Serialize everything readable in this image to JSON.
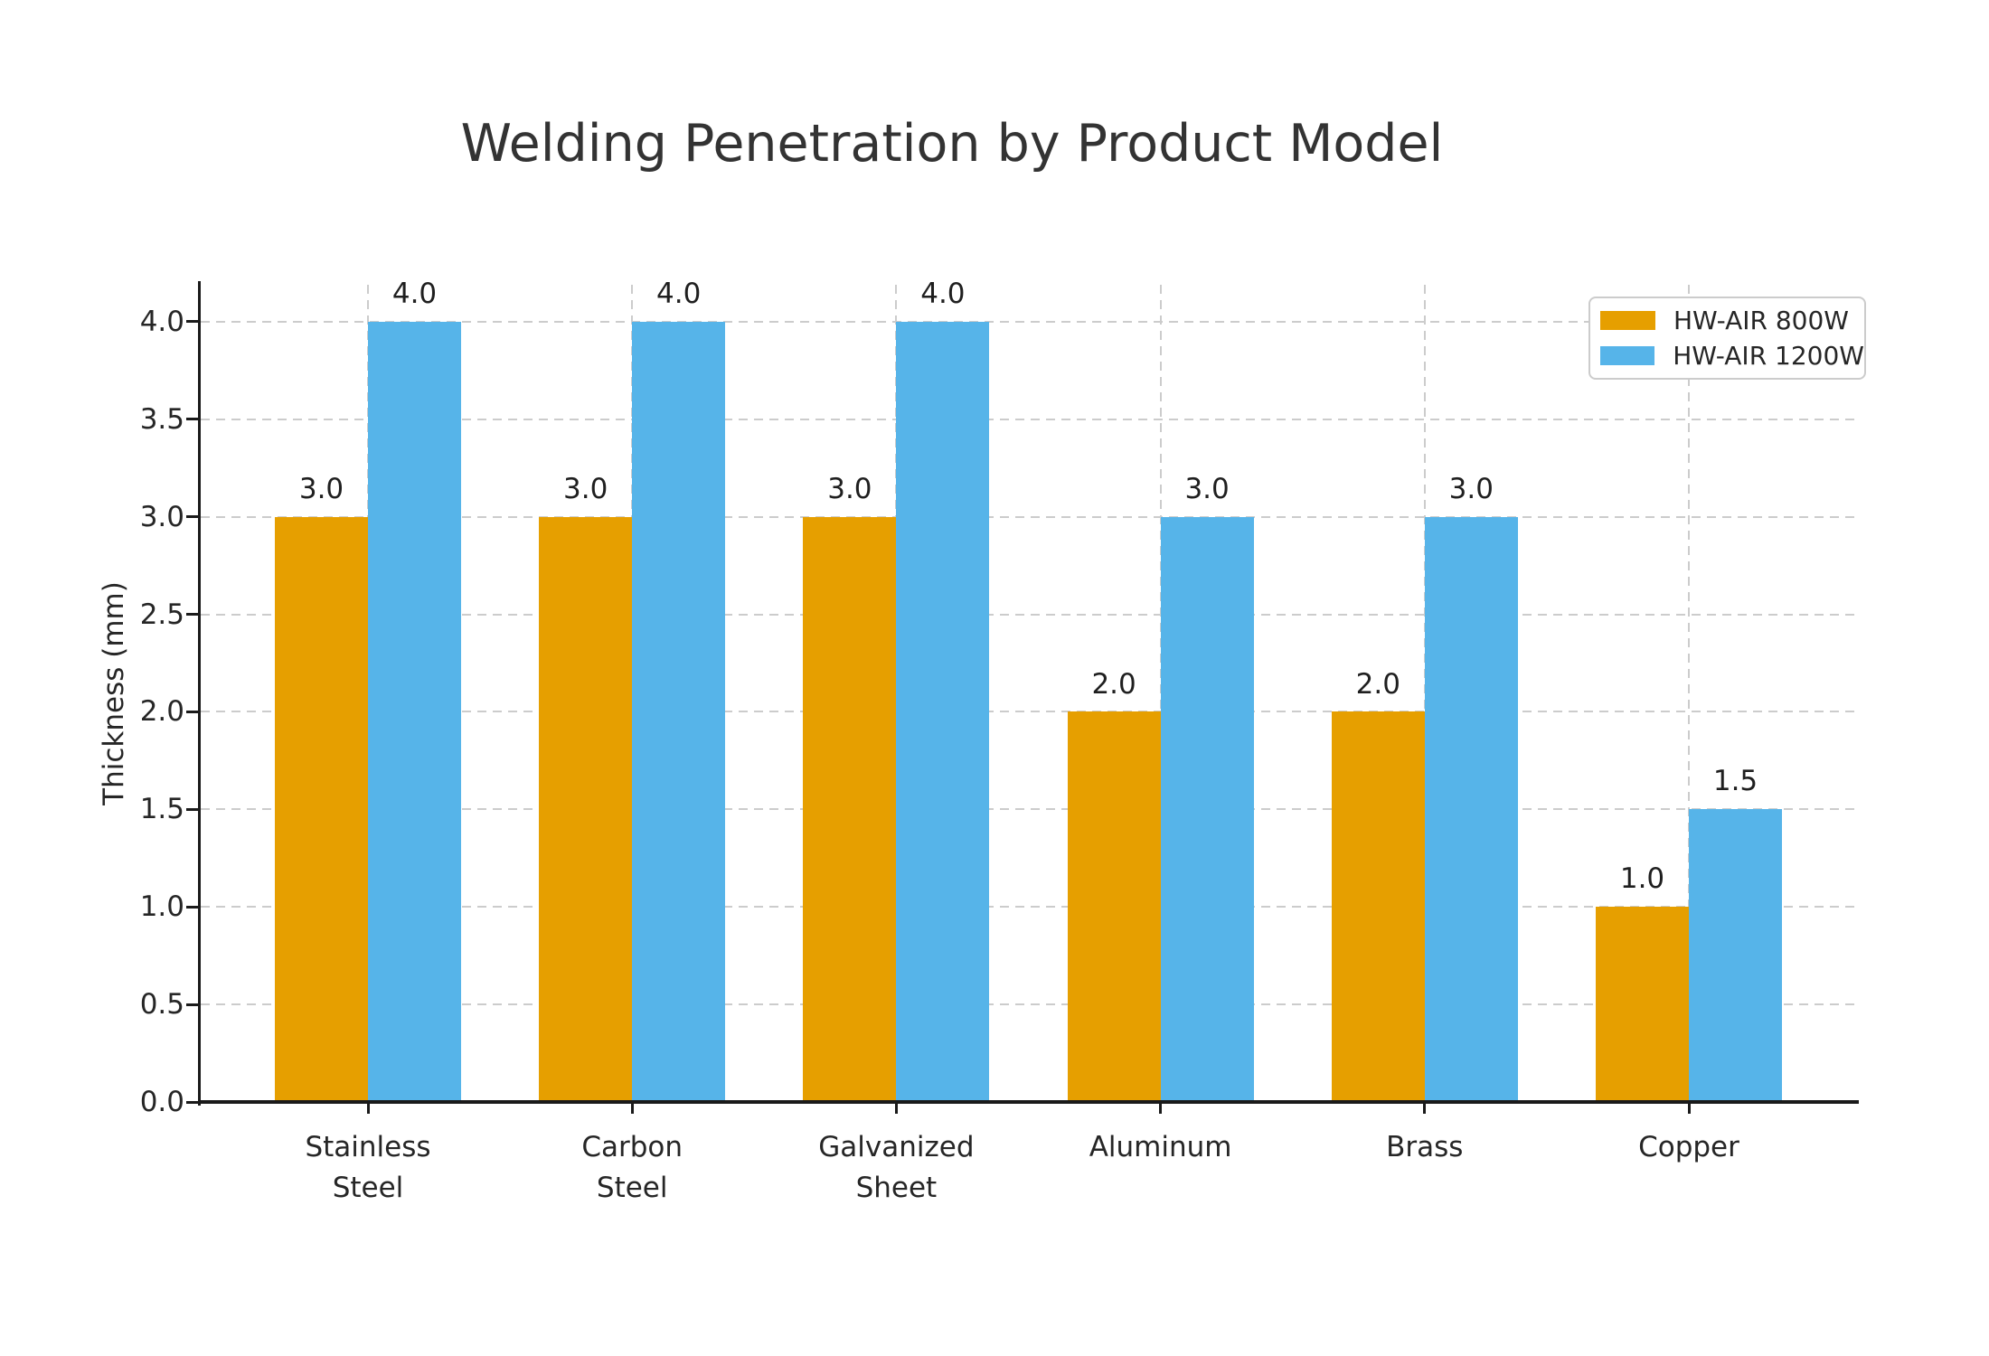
{
  "chart_data": {
    "type": "bar",
    "title": "Welding Penetration by Product Model",
    "xlabel": "",
    "ylabel": "Thickness (mm)",
    "categories": [
      "Stainless\nSteel",
      "Carbon\nSteel",
      "Galvanized\nSheet",
      "Aluminum",
      "Brass",
      "Copper"
    ],
    "series": [
      {
        "name": "HW-AIR 800W",
        "color": "#E69F00",
        "values": [
          3.0,
          3.0,
          3.0,
          2.0,
          2.0,
          1.0
        ],
        "value_labels": [
          "3.0",
          "3.0",
          "3.0",
          "2.0",
          "2.0",
          "1.0"
        ]
      },
      {
        "name": "HW-AIR 1200W",
        "color": "#56B4E9",
        "values": [
          4.0,
          4.0,
          4.0,
          3.0,
          3.0,
          1.5
        ],
        "value_labels": [
          "4.0",
          "4.0",
          "4.0",
          "3.0",
          "3.0",
          "1.5"
        ]
      }
    ],
    "yticks": [
      0.0,
      0.5,
      1.0,
      1.5,
      2.0,
      2.5,
      3.0,
      3.5,
      4.0
    ],
    "ytick_labels": [
      "0.0",
      "0.5",
      "1.0",
      "1.5",
      "2.0",
      "2.5",
      "3.0",
      "3.5",
      "4.0"
    ],
    "ylim": [
      0,
      4.19
    ],
    "grid": true,
    "grid_style": "dashed",
    "legend_position": "upper right"
  },
  "colors": {
    "background": "#ffffff",
    "text": "#262626",
    "title_text": "#333333",
    "axis": "#1a1a1a",
    "grid": "#cccccc",
    "legend_border": "#cccccc"
  }
}
